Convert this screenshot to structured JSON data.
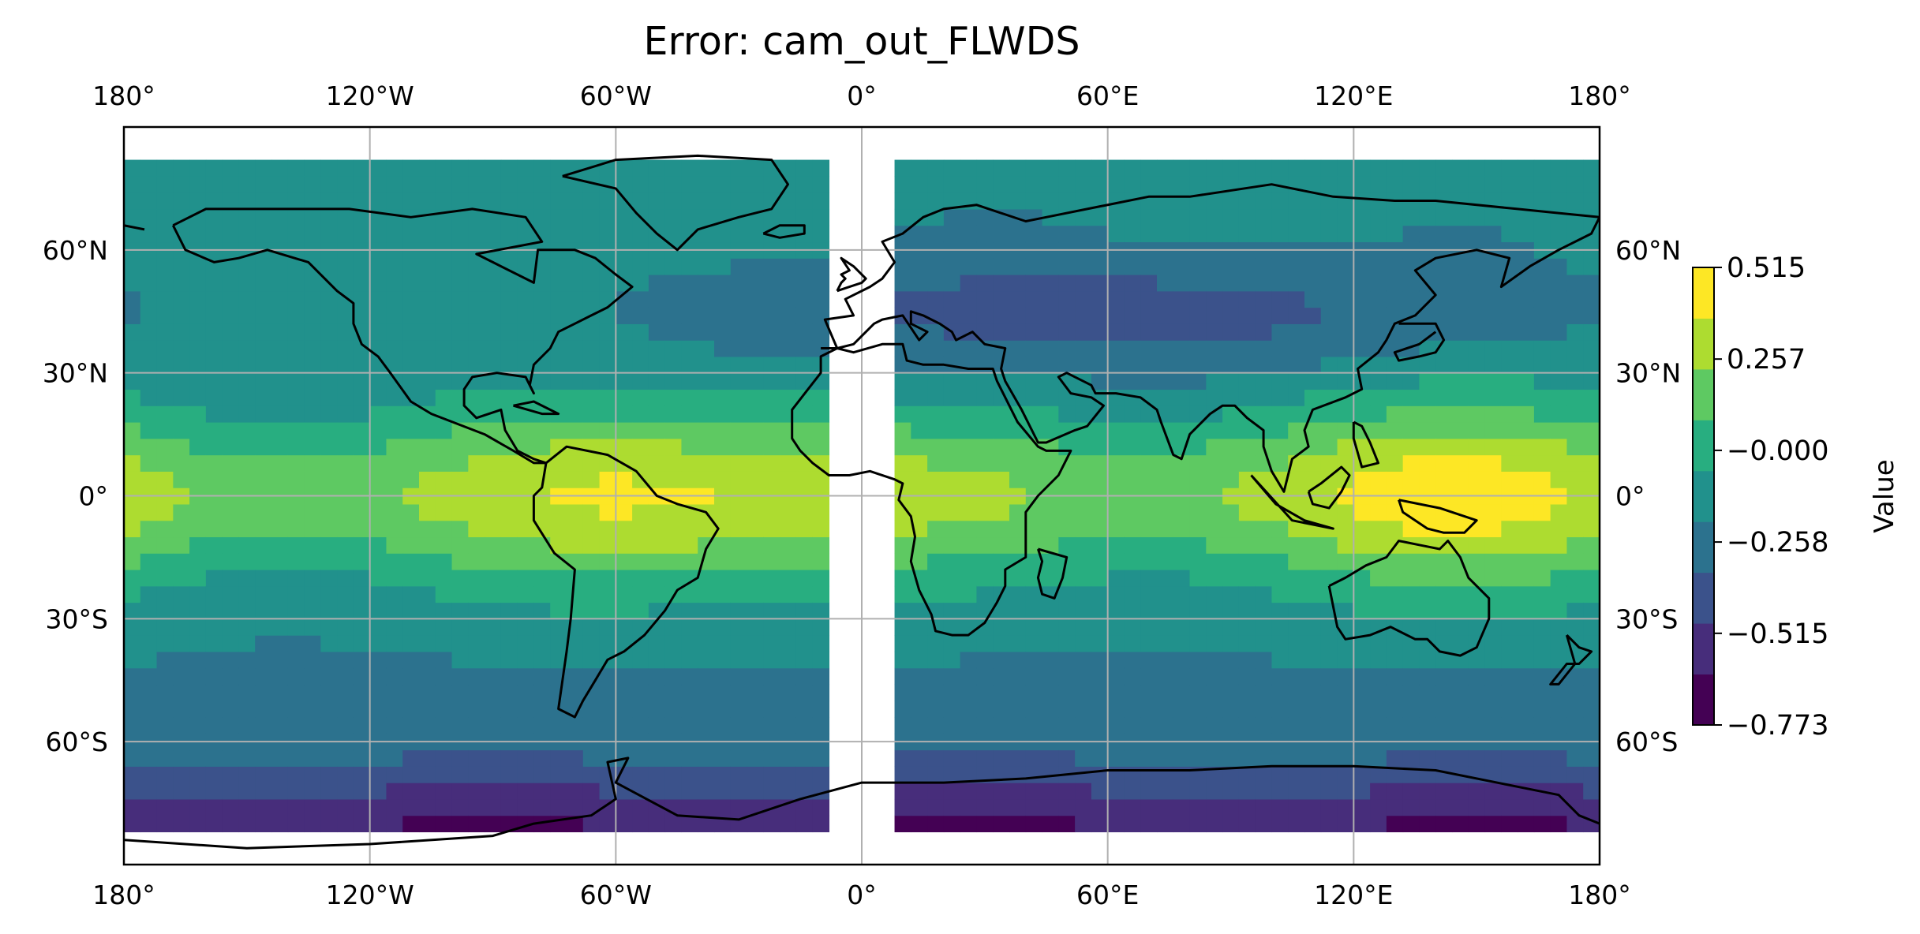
{
  "title": "Error: cam_out_FLWDS",
  "projection": "PlateCarree",
  "map_extent": {
    "lon": [
      -180,
      180
    ],
    "lat": [
      -90,
      90
    ]
  },
  "data_extent_lat": [
    -82,
    82
  ],
  "missing_band_lon": [
    -6,
    6
  ],
  "gridlines": true,
  "coastlines": true,
  "colormap": "viridis",
  "lon_ticks": [
    {
      "value": -180,
      "label": "180°"
    },
    {
      "value": -120,
      "label": "120°W"
    },
    {
      "value": -60,
      "label": "60°W"
    },
    {
      "value": 0,
      "label": "0°"
    },
    {
      "value": 60,
      "label": "60°E"
    },
    {
      "value": 120,
      "label": "120°E"
    },
    {
      "value": 180,
      "label": "180°"
    }
  ],
  "lat_ticks": [
    {
      "value": 60,
      "label": "60°N"
    },
    {
      "value": 30,
      "label": "30°N"
    },
    {
      "value": 0,
      "label": "0°"
    },
    {
      "value": -30,
      "label": "30°S"
    },
    {
      "value": -60,
      "label": "60°S"
    }
  ],
  "colorbar": {
    "label": "Value",
    "range": [
      -0.773,
      0.515
    ],
    "ticks": [
      {
        "value": 0.515,
        "label": "0.515"
      },
      {
        "value": 0.257,
        "label": "0.257"
      },
      {
        "value": -0.0,
        "label": "−0.000"
      },
      {
        "value": -0.258,
        "label": "−0.258"
      },
      {
        "value": -0.515,
        "label": "−0.515"
      },
      {
        "value": -0.773,
        "label": "−0.773"
      }
    ],
    "level_colors": [
      "#440154",
      "#472d7b",
      "#3b528b",
      "#2c728e",
      "#21918c",
      "#28ae80",
      "#5ec962",
      "#addc30",
      "#fde725"
    ]
  }
}
